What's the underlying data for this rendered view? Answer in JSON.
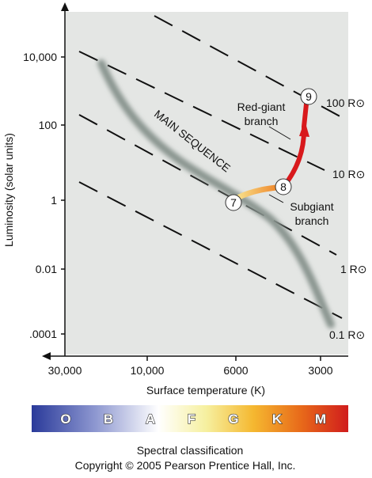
{
  "diagram": {
    "y_axis_label": "Luminosity (solar units)",
    "x_axis_label": "Surface temperature (K)",
    "y_ticks": [
      "10,000",
      "100",
      "1",
      "0.01",
      ".0001"
    ],
    "x_ticks": [
      "30,000",
      "10,000",
      "6000",
      "3000"
    ],
    "radius_lines": [
      "100 R⊙",
      "10 R⊙",
      "1 R⊙",
      "0.1 R⊙"
    ],
    "main_sequence": "MAIN SEQUENCE",
    "stages": [
      "7",
      "8",
      "9"
    ],
    "annotations": {
      "red_giant": [
        "Red-giant",
        "branch"
      ],
      "subgiant": [
        "Subgiant",
        "branch"
      ]
    },
    "spectral_classes": [
      "O",
      "B",
      "A",
      "F",
      "G",
      "K",
      "M"
    ],
    "spectral_title": "Spectral classification",
    "copyright": "Copyright © 2005 Pearson Prentice Hall, Inc."
  }
}
